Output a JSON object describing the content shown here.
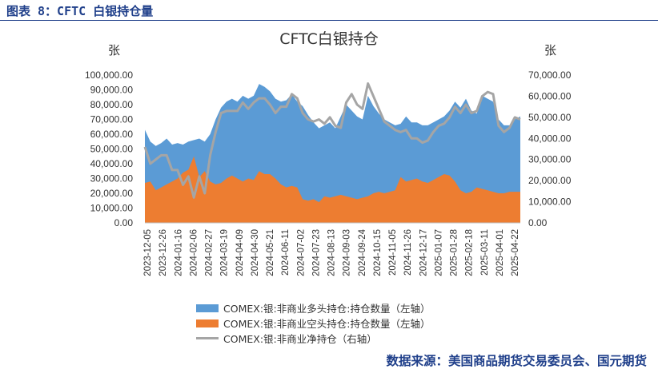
{
  "figure_title": "图表 8：CFTC 白银持仓量",
  "source": "数据来源：美国商品期货交易委员会、国元期货",
  "colors": {
    "long": "#5b9bd5",
    "short": "#ed7d31",
    "net": "#a5a5a5",
    "brand": "#1f3f8a"
  },
  "chart_data": {
    "type": "area",
    "title": "CFTC白银持仓",
    "ylabel": "张",
    "y2label": "张",
    "ylim": [
      0,
      100000
    ],
    "y2lim": [
      0,
      70000
    ],
    "yticks": [
      "0.00",
      "10,000.00",
      "20,000.00",
      "30,000.00",
      "40,000.00",
      "50,000.00",
      "60,000.00",
      "70,000.00",
      "80,000.00",
      "90,000.00",
      "100,000.00"
    ],
    "y2ticks": [
      "0.00",
      "10,000.00",
      "20,000.00",
      "30,000.00",
      "40,000.00",
      "50,000.00",
      "60,000.00",
      "70,000.00"
    ],
    "xticks": [
      "2023-12-05",
      "2023-12-26",
      "2024-01-16",
      "2024-02-06",
      "2024-02-27",
      "2024-03-19",
      "2024-04-09",
      "2024-04-30",
      "2024-05-21",
      "2024-06-11",
      "2024-07-02",
      "2024-07-23",
      "2024-08-13",
      "2024-09-03",
      "2024-09-24",
      "2024-10-15",
      "2024-11-05",
      "2024-11-26",
      "2024-12-17",
      "2025-01-07",
      "2025-01-28",
      "2025-02-18",
      "2025-03-11",
      "2025-04-01",
      "2025-04-22"
    ],
    "legend_position": "bottom",
    "grid": false,
    "series": [
      {
        "name": "COMEX:银:非商业多头持仓:持仓数量（左轴）",
        "axis": "left",
        "values": [
          63000,
          55000,
          52000,
          54000,
          57000,
          53000,
          54000,
          53000,
          55000,
          56000,
          57000,
          55000,
          60000,
          70000,
          78000,
          82000,
          84000,
          82000,
          86000,
          84000,
          86000,
          94000,
          92000,
          89000,
          84000,
          82000,
          83000,
          87000,
          82000,
          79000,
          73000,
          68000,
          64000,
          66000,
          68000,
          64000,
          72000,
          80000,
          76000,
          72000,
          70000,
          86000,
          79000,
          74000,
          70000,
          68000,
          66000,
          67000,
          72000,
          68000,
          68000,
          66000,
          66000,
          68000,
          70000,
          72000,
          76000,
          82000,
          78000,
          84000,
          76000,
          74000,
          86000,
          84000,
          82000,
          70000,
          66000,
          66000,
          70000,
          72000
        ]
      },
      {
        "name": "COMEX:银:非商业空头持仓:持仓数量（左轴）",
        "axis": "left",
        "values": [
          27000,
          28000,
          22000,
          24000,
          26000,
          28000,
          30000,
          34000,
          36000,
          45000,
          31000,
          35000,
          28000,
          26000,
          27000,
          30000,
          32000,
          30000,
          28000,
          30000,
          29000,
          35000,
          33000,
          33000,
          30000,
          26000,
          24000,
          25000,
          24000,
          16000,
          15000,
          16000,
          14000,
          18000,
          17000,
          18000,
          19000,
          18000,
          17000,
          16000,
          17000,
          18000,
          20000,
          21000,
          20000,
          21000,
          22000,
          31000,
          28000,
          29000,
          30000,
          28000,
          27000,
          29000,
          31000,
          33000,
          32000,
          28000,
          22000,
          20000,
          21000,
          24000,
          23000,
          22000,
          21000,
          20000,
          20000,
          21000,
          21000,
          21000
        ]
      },
      {
        "name": "COMEX:银:非商业净持仓（右轴）",
        "axis": "right",
        "values": [
          36000,
          28000,
          30000,
          32000,
          32000,
          25000,
          25000,
          18000,
          22000,
          12000,
          22000,
          14000,
          32000,
          43000,
          52000,
          53000,
          53000,
          53000,
          57000,
          54000,
          57000,
          59000,
          59000,
          56000,
          52000,
          55000,
          55000,
          61000,
          59000,
          52000,
          49000,
          48000,
          49000,
          47000,
          50000,
          46000,
          45000,
          57000,
          61000,
          56000,
          54000,
          66000,
          60000,
          54000,
          48000,
          46000,
          44000,
          43000,
          44000,
          40000,
          40000,
          38000,
          39000,
          43000,
          46000,
          47000,
          50000,
          55000,
          52000,
          56000,
          52000,
          53000,
          60000,
          62000,
          61000,
          46000,
          43000,
          45000,
          50000,
          49000
        ]
      }
    ]
  }
}
